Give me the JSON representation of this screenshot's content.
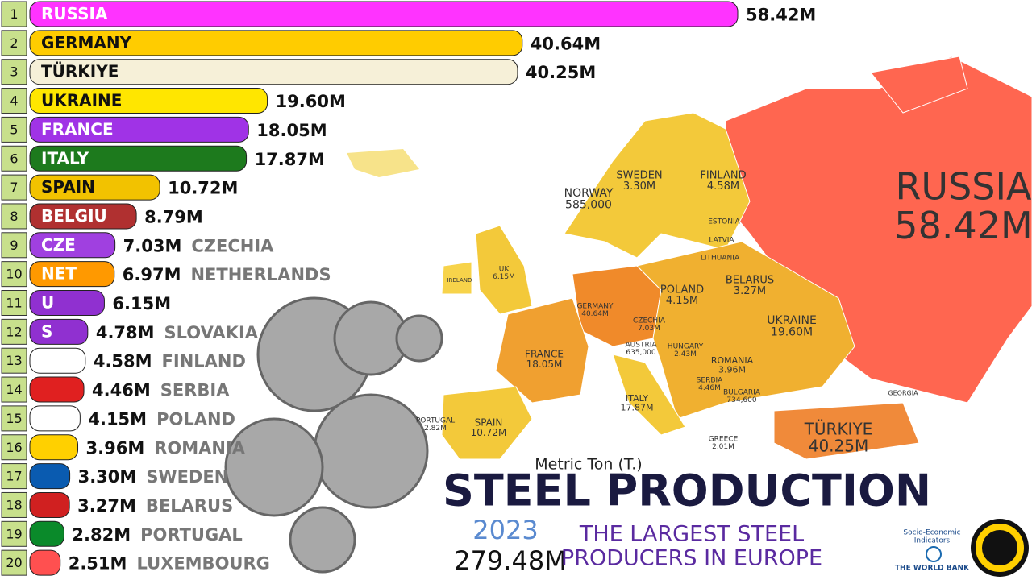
{
  "chart_data": {
    "type": "bar",
    "title": "STEEL PRODUCTION",
    "unit": "Metric Ton (T.)",
    "year": "2023",
    "total": "279.48M",
    "subtitle": [
      "THE LARGEST STEEL",
      "PRODUCERS IN EUROPE"
    ],
    "source": [
      "Socio-Economic",
      "Indicators",
      "THE WORLD BANK"
    ],
    "ranks": [
      1,
      2,
      3,
      4,
      5,
      6,
      7,
      8,
      9,
      10,
      11,
      12,
      13,
      14,
      15,
      16,
      17,
      18,
      19,
      20
    ],
    "inside_labels": [
      "RUSSIA",
      "GERMANY",
      "TÜRKIYE",
      "UKRAINE",
      "FRANCE",
      "ITALY",
      "SPAIN",
      "BELGIU",
      "CZE",
      "NET",
      "U",
      "S",
      null,
      null,
      null,
      null,
      null,
      null,
      null,
      null
    ],
    "categories": [
      null,
      null,
      null,
      null,
      null,
      null,
      null,
      null,
      "CZECHIA",
      "NETHERLANDS",
      null,
      "SLOVAKIA",
      "FINLAND",
      "SERBIA",
      "POLAND",
      "ROMANIA",
      "SWEDEN",
      "BELARUS",
      "PORTUGAL",
      "LUXEMBOURG"
    ],
    "values": [
      58.42,
      40.64,
      40.25,
      19.6,
      18.05,
      17.87,
      10.72,
      8.79,
      7.03,
      6.97,
      6.15,
      4.78,
      4.58,
      4.46,
      4.15,
      3.96,
      3.3,
      3.27,
      2.82,
      2.51
    ],
    "value_labels": [
      "58.42M",
      "40.64M",
      "40.25M",
      "19.60M",
      "18.05M",
      "17.87M",
      "10.72M",
      "8.79M",
      "7.03M",
      "6.97M",
      "6.15M",
      "4.78M",
      "4.58M",
      "4.46M",
      "4.15M",
      "3.96M",
      "3.30M",
      "3.27M",
      "2.82M",
      "2.51M"
    ],
    "colors": [
      "#ff33ff",
      "#ffcc00",
      "#f6f0d8",
      "#ffe600",
      "#a033e6",
      "#1d7a1d",
      "#f2c200",
      "#b03030",
      "#a040e0",
      "#ff9900",
      "#9030d0",
      "#9030d0",
      "#ffffff",
      "#e02020",
      "#ffffff",
      "#ffd000",
      "#0a5bb0",
      "#d02020",
      "#0a8a2a",
      "#ff5050"
    ],
    "map_labels": [
      {
        "label": "RUSSIA",
        "value": "58.42M"
      },
      {
        "label": "NORWAY",
        "value": "585,000"
      },
      {
        "label": "SWEDEN",
        "value": "3.30M"
      },
      {
        "label": "FINLAND",
        "value": "4.58M"
      },
      {
        "label": "UK",
        "value": "6.15M"
      },
      {
        "label": "GERMANY",
        "value": "40.64M"
      },
      {
        "label": "POLAND",
        "value": "4.15M"
      },
      {
        "label": "BELARUS",
        "value": "3.27M"
      },
      {
        "label": "UKRAINE",
        "value": "19.60M"
      },
      {
        "label": "FRANCE",
        "value": "18.05M"
      },
      {
        "label": "CZECHIA",
        "value": "7.03M"
      },
      {
        "label": "AUSTRIA",
        "value": "635,000"
      },
      {
        "label": "HUNGARY",
        "value": "2.43M"
      },
      {
        "label": "ROMANIA",
        "value": "3.96M"
      },
      {
        "label": "SERBIA",
        "value": "4.46M"
      },
      {
        "label": "BULGARIA",
        "value": "734,600"
      },
      {
        "label": "ITALY",
        "value": "17.87M"
      },
      {
        "label": "SPAIN",
        "value": "10.72M"
      },
      {
        "label": "PORTUGAL",
        "value": "2.82M"
      },
      {
        "label": "GREECE",
        "value": "2.01M"
      },
      {
        "label": "TÜRKIYE",
        "value": "40.25M"
      },
      {
        "label": "ESTONIA"
      },
      {
        "label": "LATVIA"
      },
      {
        "label": "LITHUANIA"
      },
      {
        "label": "IRELAND"
      },
      {
        "label": "GEORGIA"
      }
    ]
  }
}
